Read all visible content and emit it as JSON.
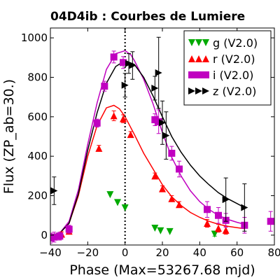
{
  "chart_data": {
    "type": "scatter",
    "title": "04D4ib : Courbes de Lumiere",
    "xlabel": "Phase (Max=53267.68 mjd)",
    "ylabel": "Flux (ZP_ab=30.)",
    "xlim": [
      -40,
      80
    ],
    "ylim": [
      -50,
      1050
    ],
    "xticks": [
      -40,
      -20,
      0,
      20,
      40,
      60,
      80
    ],
    "yticks": [
      0,
      200,
      400,
      600,
      800,
      1000
    ],
    "max_line_x": 0,
    "legend_position": "top-right",
    "series": [
      {
        "name": "g (V2.0)",
        "color": "#00aa00",
        "marker": "triangle-down",
        "points": [
          {
            "x": -8,
            "y": 205,
            "err": 0
          },
          {
            "x": -4,
            "y": 165,
            "err": 0
          },
          {
            "x": 0,
            "y": 138,
            "err": 0
          },
          {
            "x": 16,
            "y": 35,
            "err": 0
          },
          {
            "x": 19,
            "y": 22,
            "err": 0
          },
          {
            "x": 24,
            "y": 18,
            "err": 0
          },
          {
            "x": 48,
            "y": 5,
            "err": 10
          }
        ],
        "curve": []
      },
      {
        "name": "r (V2.0)",
        "color": "#ff0000",
        "marker": "triangle-up",
        "points": [
          {
            "x": -34,
            "y": 5,
            "err": 12
          },
          {
            "x": -30,
            "y": 20,
            "err": 15
          },
          {
            "x": -14,
            "y": 440,
            "err": 15
          },
          {
            "x": -6,
            "y": 605,
            "err": 25
          },
          {
            "x": -1,
            "y": 590,
            "err": 20
          },
          {
            "x": 3,
            "y": 510,
            "err": 15
          },
          {
            "x": 16,
            "y": 300,
            "err": 15
          },
          {
            "x": 20,
            "y": 235,
            "err": 15
          },
          {
            "x": 25,
            "y": 185,
            "err": 15
          },
          {
            "x": 29,
            "y": 155,
            "err": 15
          },
          {
            "x": 44,
            "y": 60,
            "err": 20
          },
          {
            "x": 50,
            "y": 35,
            "err": 20
          },
          {
            "x": 54,
            "y": 25,
            "err": 20
          }
        ],
        "curve": [
          [
            -40,
            0
          ],
          [
            -35,
            10
          ],
          [
            -30,
            60
          ],
          [
            -25,
            200
          ],
          [
            -20,
            400
          ],
          [
            -15,
            555
          ],
          [
            -10,
            645
          ],
          [
            -6,
            658
          ],
          [
            -3,
            640
          ],
          [
            0,
            600
          ],
          [
            5,
            510
          ],
          [
            10,
            415
          ],
          [
            15,
            335
          ],
          [
            20,
            255
          ],
          [
            25,
            195
          ],
          [
            30,
            150
          ],
          [
            35,
            115
          ],
          [
            40,
            90
          ],
          [
            45,
            70
          ],
          [
            50,
            55
          ],
          [
            55,
            45
          ],
          [
            60,
            38
          ],
          [
            64,
            33
          ]
        ]
      },
      {
        "name": "i (V2.0)",
        "color": "#c000c0",
        "marker": "square",
        "points": [
          {
            "x": -40,
            "y": -15,
            "err": 25
          },
          {
            "x": -38,
            "y": -10,
            "err": 25
          },
          {
            "x": -35,
            "y": -5,
            "err": 20
          },
          {
            "x": -30,
            "y": 30,
            "err": 20
          },
          {
            "x": -15,
            "y": 568,
            "err": 20
          },
          {
            "x": -11,
            "y": 755,
            "err": 25
          },
          {
            "x": -6,
            "y": 903,
            "err": 30
          },
          {
            "x": -1,
            "y": 875,
            "err": 30
          },
          {
            "x": 16,
            "y": 585,
            "err": 30
          },
          {
            "x": 18,
            "y": 575,
            "err": 60
          },
          {
            "x": 25,
            "y": 415,
            "err": 35
          },
          {
            "x": 29,
            "y": 335,
            "err": 40
          },
          {
            "x": 44,
            "y": 130,
            "err": 40
          },
          {
            "x": 50,
            "y": 100,
            "err": 40
          },
          {
            "x": 54,
            "y": 75,
            "err": 35
          },
          {
            "x": 64,
            "y": 50,
            "err": 40
          },
          {
            "x": 78,
            "y": 70,
            "err": 50
          }
        ],
        "curve": [
          [
            -40,
            0
          ],
          [
            -35,
            10
          ],
          [
            -30,
            70
          ],
          [
            -25,
            230
          ],
          [
            -20,
            460
          ],
          [
            -15,
            670
          ],
          [
            -10,
            840
          ],
          [
            -5,
            920
          ],
          [
            0,
            935
          ],
          [
            3,
            915
          ],
          [
            5,
            885
          ],
          [
            10,
            790
          ],
          [
            15,
            665
          ],
          [
            20,
            520
          ],
          [
            25,
            395
          ],
          [
            30,
            300
          ],
          [
            35,
            225
          ],
          [
            40,
            170
          ],
          [
            45,
            130
          ],
          [
            50,
            100
          ],
          [
            55,
            80
          ],
          [
            60,
            65
          ],
          [
            64,
            55
          ]
        ]
      },
      {
        "name": "z (V2.0)",
        "color": "#000000",
        "marker": "triangle-right",
        "points": [
          {
            "x": -38,
            "y": 225,
            "err": 70
          },
          {
            "x": 0,
            "y": 760,
            "err": 60
          },
          {
            "x": 2,
            "y": 870,
            "err": 50
          },
          {
            "x": 4,
            "y": 860,
            "err": 70
          },
          {
            "x": 16,
            "y": 745,
            "err": 60
          },
          {
            "x": 18,
            "y": 823,
            "err": 180
          },
          {
            "x": 20,
            "y": 570,
            "err": 110
          },
          {
            "x": 22,
            "y": 505,
            "err": 120
          },
          {
            "x": 54,
            "y": 180,
            "err": 110
          },
          {
            "x": 64,
            "y": 140,
            "err": 120
          }
        ],
        "curve": [
          [
            -40,
            0
          ],
          [
            -35,
            10
          ],
          [
            -30,
            60
          ],
          [
            -25,
            210
          ],
          [
            -20,
            430
          ],
          [
            -15,
            620
          ],
          [
            -10,
            770
          ],
          [
            -5,
            855
          ],
          [
            0,
            885
          ],
          [
            5,
            865
          ],
          [
            10,
            800
          ],
          [
            15,
            705
          ],
          [
            20,
            600
          ],
          [
            25,
            500
          ],
          [
            30,
            420
          ],
          [
            35,
            355
          ],
          [
            40,
            300
          ],
          [
            45,
            255
          ],
          [
            50,
            215
          ],
          [
            55,
            185
          ],
          [
            60,
            160
          ],
          [
            64,
            140
          ]
        ]
      }
    ]
  }
}
